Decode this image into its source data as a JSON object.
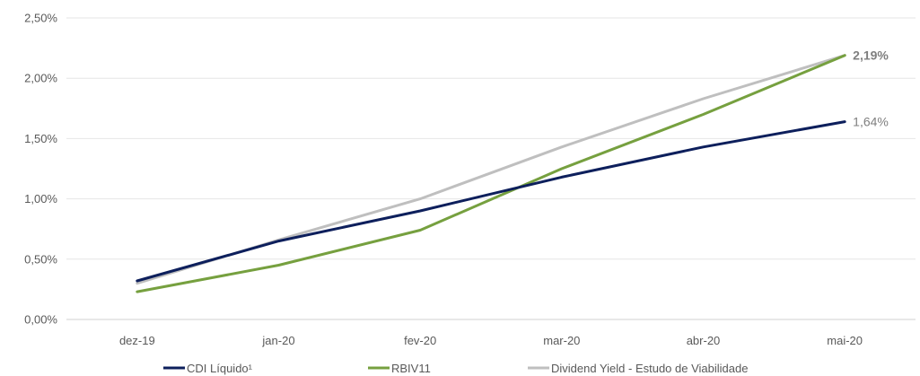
{
  "chart_data": {
    "type": "line",
    "categories": [
      "dez-19",
      "jan-20",
      "fev-20",
      "mar-20",
      "abr-20",
      "mai-20"
    ],
    "series": [
      {
        "name": "CDI Líquido¹",
        "color": "#0d1f5c",
        "values": [
          0.32,
          0.65,
          0.9,
          1.18,
          1.43,
          1.64
        ]
      },
      {
        "name": "RBIV11",
        "color": "#76a03f",
        "values": [
          0.23,
          0.45,
          0.74,
          1.25,
          1.7,
          2.19
        ]
      },
      {
        "name": "Dividend Yield - Estudo de Viabilidade",
        "color": "#bfbfbf",
        "values": [
          0.3,
          0.66,
          1.0,
          1.43,
          1.83,
          2.19
        ]
      }
    ],
    "ylim": [
      0,
      2.5
    ],
    "yticks": [
      0,
      0.5,
      1.0,
      1.5,
      2.0,
      2.5
    ],
    "ytick_labels": [
      "0,00%",
      "0,50%",
      "1,00%",
      "1,50%",
      "2,00%",
      "2,50%"
    ],
    "end_labels": [
      {
        "text": "2,19%",
        "series": 1,
        "bold": true,
        "color": "#7f7f7f"
      },
      {
        "text": "1,64%",
        "series": 0,
        "bold": false,
        "color": "#7f7f7f"
      }
    ],
    "grid": true,
    "legend_position": "bottom",
    "title": "",
    "xlabel": "",
    "ylabel": ""
  }
}
